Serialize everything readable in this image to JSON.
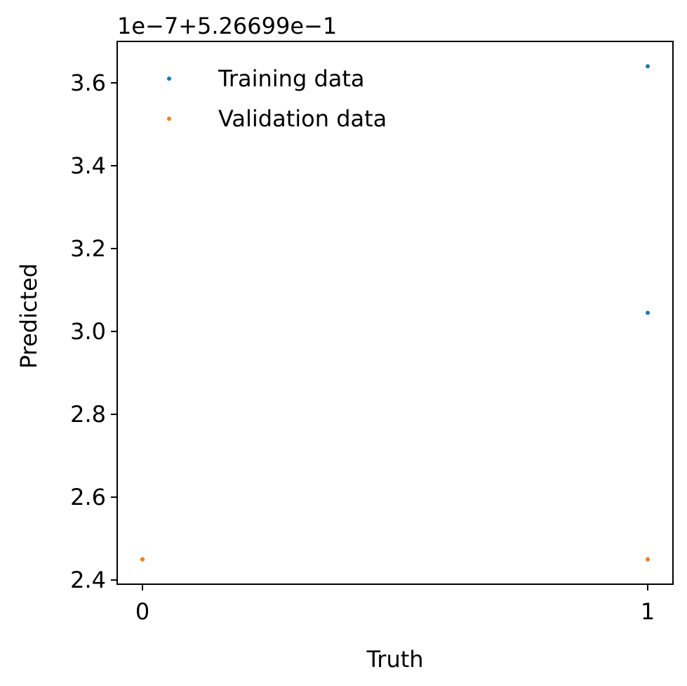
{
  "chart_data": {
    "type": "scatter",
    "title": "",
    "xlabel": "Truth",
    "ylabel": "Predicted",
    "offset_text": "1e−7+5.26699e−1",
    "xlim": [
      -0.05,
      1.05
    ],
    "ylim": [
      2.39,
      3.7
    ],
    "x_ticks": [
      0,
      1
    ],
    "x_tick_labels": [
      "0",
      "1"
    ],
    "y_ticks": [
      2.4,
      2.6,
      2.8,
      3.0,
      3.2,
      3.4,
      3.6
    ],
    "y_tick_labels": [
      "2.4",
      "2.6",
      "2.8",
      "3.0",
      "3.2",
      "3.4",
      "3.6"
    ],
    "grid": false,
    "legend_position": "top-left",
    "series": [
      {
        "name": "Training data",
        "color": "#1f77b4",
        "points": [
          [
            1,
            3.64
          ],
          [
            1,
            3.045
          ],
          [
            1,
            2.45
          ],
          [
            0,
            2.45
          ]
        ]
      },
      {
        "name": "Validation data",
        "color": "#ff7f0e",
        "points": [
          [
            0,
            2.45
          ],
          [
            1,
            2.45
          ]
        ]
      }
    ]
  }
}
